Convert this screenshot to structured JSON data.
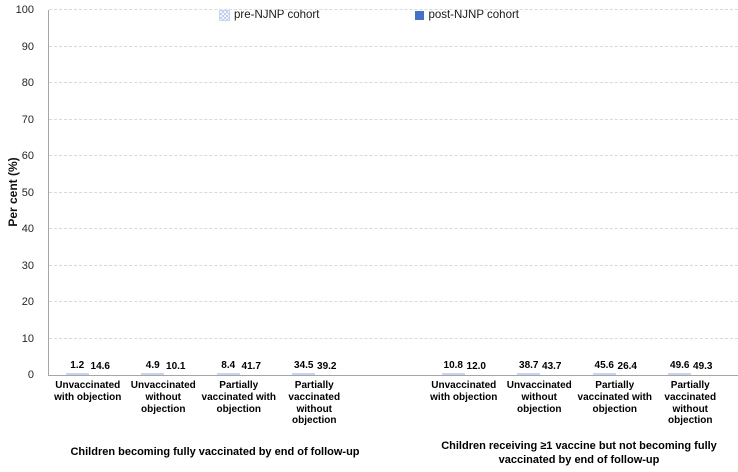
{
  "chart_data": {
    "type": "bar",
    "title": "",
    "ylabel": "Per cent (%)",
    "ylim": [
      0,
      100
    ],
    "ytick_step": 10,
    "grid": "horizontal-dashed",
    "legend": [
      {
        "name": "pre-NJNP cohort",
        "style": "pattern-light-blue-checker"
      },
      {
        "name": "post-NJNP cohort",
        "style": "solid-blue"
      }
    ],
    "groups": [
      {
        "title": "Children becoming fully vaccinated by end of follow-up",
        "categories": [
          "Unvaccinated\nwith objection",
          "Unvaccinated\nwithout\nobjection",
          "Partially\nvaccinated with\nobjection",
          "Partially\nvaccinated\nwithout\nobjection"
        ],
        "series": [
          {
            "name": "pre-NJNP cohort",
            "values": [
              1.2,
              4.9,
              8.4,
              34.5
            ]
          },
          {
            "name": "post-NJNP cohort",
            "values": [
              14.6,
              10.1,
              41.7,
              39.2
            ]
          }
        ]
      },
      {
        "title": "Children receiving ≥1 vaccine but not becoming fully\nvaccinated by end of follow-up",
        "categories": [
          "Unvaccinated\nwith objection",
          "Unvaccinated\nwithout\nobjection",
          "Partially\nvaccinated with\nobjection",
          "Partially\nvaccinated\nwithout\nobjection"
        ],
        "series": [
          {
            "name": "pre-NJNP cohort",
            "values": [
              10.8,
              38.7,
              45.6,
              49.6
            ]
          },
          {
            "name": "post-NJNP cohort",
            "values": [
              12.0,
              43.7,
              26.4,
              49.3
            ]
          }
        ]
      }
    ]
  },
  "colors": {
    "post_fill": "#4472c4",
    "pre_pattern": "#bed1ef",
    "pre_background": "#f3f7fd",
    "gridline": "#d9d9d9",
    "axis": "#a6a6a6",
    "text": "#000000"
  }
}
